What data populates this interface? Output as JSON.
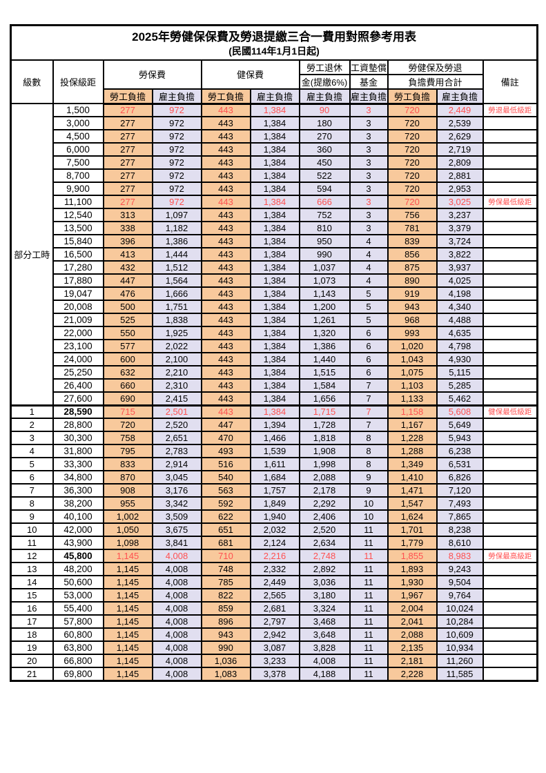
{
  "title": "2025年勞健保保費及勞退提繳三合一費用對照參考用表",
  "subtitle": "(民國114年1月1日起)",
  "colors": {
    "employee_bg": "#F8C99C",
    "employer_bg": "#E1DFF0",
    "highlight_red": "#FF5050",
    "border": "#000000"
  },
  "header": {
    "level": "級數",
    "salary": "投保級距",
    "labor_insurance": "勞保費",
    "health_insurance": "健保費",
    "pension_line1": "勞工退休",
    "pension_line2": "金(提繳6%)",
    "wage_fund_line1": "工資墊償",
    "wage_fund_line2": "基金",
    "total_line1": "勞健保及勞退",
    "total_line2": "負擔費用合計",
    "note": "備註",
    "employee": "勞工負擔",
    "employer": "雇主負擔"
  },
  "part_time_label": "部分工時",
  "part_time_rowspan": 23,
  "rows": [
    {
      "level": "",
      "salary": "1,500",
      "values": [
        "277",
        "972",
        "443",
        "1,384",
        "90",
        "3",
        "720",
        "2,449"
      ],
      "note": "勞退最低級距",
      "red": true,
      "bold": false,
      "divider": false
    },
    {
      "level": "",
      "salary": "3,000",
      "values": [
        "277",
        "972",
        "443",
        "1,384",
        "180",
        "3",
        "720",
        "2,539"
      ],
      "note": "",
      "red": false,
      "bold": false,
      "divider": false
    },
    {
      "level": "",
      "salary": "4,500",
      "values": [
        "277",
        "972",
        "443",
        "1,384",
        "270",
        "3",
        "720",
        "2,629"
      ],
      "note": "",
      "red": false,
      "bold": false,
      "divider": false
    },
    {
      "level": "",
      "salary": "6,000",
      "values": [
        "277",
        "972",
        "443",
        "1,384",
        "360",
        "3",
        "720",
        "2,719"
      ],
      "note": "",
      "red": false,
      "bold": false,
      "divider": false
    },
    {
      "level": "",
      "salary": "7,500",
      "values": [
        "277",
        "972",
        "443",
        "1,384",
        "450",
        "3",
        "720",
        "2,809"
      ],
      "note": "",
      "red": false,
      "bold": false,
      "divider": false
    },
    {
      "level": "",
      "salary": "8,700",
      "values": [
        "277",
        "972",
        "443",
        "1,384",
        "522",
        "3",
        "720",
        "2,881"
      ],
      "note": "",
      "red": false,
      "bold": false,
      "divider": false
    },
    {
      "level": "",
      "salary": "9,900",
      "values": [
        "277",
        "972",
        "443",
        "1,384",
        "594",
        "3",
        "720",
        "2,953"
      ],
      "note": "",
      "red": false,
      "bold": false,
      "divider": false
    },
    {
      "level": "",
      "salary": "11,100",
      "values": [
        "277",
        "972",
        "443",
        "1,384",
        "666",
        "3",
        "720",
        "3,025"
      ],
      "note": "勞保最低級距",
      "red": true,
      "bold": false,
      "divider": false
    },
    {
      "level": "",
      "salary": "12,540",
      "values": [
        "313",
        "1,097",
        "443",
        "1,384",
        "752",
        "3",
        "756",
        "3,237"
      ],
      "note": "",
      "red": false,
      "bold": false,
      "divider": false
    },
    {
      "level": "",
      "salary": "13,500",
      "values": [
        "338",
        "1,182",
        "443",
        "1,384",
        "810",
        "3",
        "781",
        "3,379"
      ],
      "note": "",
      "red": false,
      "bold": false,
      "divider": false
    },
    {
      "level": "",
      "salary": "15,840",
      "values": [
        "396",
        "1,386",
        "443",
        "1,384",
        "950",
        "4",
        "839",
        "3,724"
      ],
      "note": "",
      "red": false,
      "bold": false,
      "divider": false
    },
    {
      "level": "",
      "salary": "16,500",
      "values": [
        "413",
        "1,444",
        "443",
        "1,384",
        "990",
        "4",
        "856",
        "3,822"
      ],
      "note": "",
      "red": false,
      "bold": false,
      "divider": false
    },
    {
      "level": "",
      "salary": "17,280",
      "values": [
        "432",
        "1,512",
        "443",
        "1,384",
        "1,037",
        "4",
        "875",
        "3,937"
      ],
      "note": "",
      "red": false,
      "bold": false,
      "divider": false
    },
    {
      "level": "",
      "salary": "17,880",
      "values": [
        "447",
        "1,564",
        "443",
        "1,384",
        "1,073",
        "4",
        "890",
        "4,025"
      ],
      "note": "",
      "red": false,
      "bold": false,
      "divider": false
    },
    {
      "level": "",
      "salary": "19,047",
      "values": [
        "476",
        "1,666",
        "443",
        "1,384",
        "1,143",
        "5",
        "919",
        "4,198"
      ],
      "note": "",
      "red": false,
      "bold": false,
      "divider": false
    },
    {
      "level": "",
      "salary": "20,008",
      "values": [
        "500",
        "1,751",
        "443",
        "1,384",
        "1,200",
        "5",
        "943",
        "4,340"
      ],
      "note": "",
      "red": false,
      "bold": false,
      "divider": false
    },
    {
      "level": "",
      "salary": "21,009",
      "values": [
        "525",
        "1,838",
        "443",
        "1,384",
        "1,261",
        "5",
        "968",
        "4,488"
      ],
      "note": "",
      "red": false,
      "bold": false,
      "divider": false
    },
    {
      "level": "",
      "salary": "22,000",
      "values": [
        "550",
        "1,925",
        "443",
        "1,384",
        "1,320",
        "6",
        "993",
        "4,635"
      ],
      "note": "",
      "red": false,
      "bold": false,
      "divider": false
    },
    {
      "level": "",
      "salary": "23,100",
      "values": [
        "577",
        "2,022",
        "443",
        "1,384",
        "1,386",
        "6",
        "1,020",
        "4,798"
      ],
      "note": "",
      "red": false,
      "bold": false,
      "divider": false
    },
    {
      "level": "",
      "salary": "24,000",
      "values": [
        "600",
        "2,100",
        "443",
        "1,384",
        "1,440",
        "6",
        "1,043",
        "4,930"
      ],
      "note": "",
      "red": false,
      "bold": false,
      "divider": false
    },
    {
      "level": "",
      "salary": "25,250",
      "values": [
        "632",
        "2,210",
        "443",
        "1,384",
        "1,515",
        "6",
        "1,075",
        "5,115"
      ],
      "note": "",
      "red": false,
      "bold": false,
      "divider": false
    },
    {
      "level": "",
      "salary": "26,400",
      "values": [
        "660",
        "2,310",
        "443",
        "1,384",
        "1,584",
        "7",
        "1,103",
        "5,285"
      ],
      "note": "",
      "red": false,
      "bold": false,
      "divider": false
    },
    {
      "level": "",
      "salary": "27,600",
      "values": [
        "690",
        "2,415",
        "443",
        "1,384",
        "1,656",
        "7",
        "1,133",
        "5,462"
      ],
      "note": "",
      "red": false,
      "bold": false,
      "divider": false
    },
    {
      "level": "1",
      "salary": "28,590",
      "values": [
        "715",
        "2,501",
        "443",
        "1,384",
        "1,715",
        "7",
        "1,158",
        "5,608"
      ],
      "note": "健保最低級距",
      "red": true,
      "bold": true,
      "divider": true
    },
    {
      "level": "2",
      "salary": "28,800",
      "values": [
        "720",
        "2,520",
        "447",
        "1,394",
        "1,728",
        "7",
        "1,167",
        "5,649"
      ],
      "note": "",
      "red": false,
      "bold": false,
      "divider": false
    },
    {
      "level": "3",
      "salary": "30,300",
      "values": [
        "758",
        "2,651",
        "470",
        "1,466",
        "1,818",
        "8",
        "1,228",
        "5,943"
      ],
      "note": "",
      "red": false,
      "bold": false,
      "divider": false
    },
    {
      "level": "4",
      "salary": "31,800",
      "values": [
        "795",
        "2,783",
        "493",
        "1,539",
        "1,908",
        "8",
        "1,288",
        "6,238"
      ],
      "note": "",
      "red": false,
      "bold": false,
      "divider": false
    },
    {
      "level": "5",
      "salary": "33,300",
      "values": [
        "833",
        "2,914",
        "516",
        "1,611",
        "1,998",
        "8",
        "1,349",
        "6,531"
      ],
      "note": "",
      "red": false,
      "bold": false,
      "divider": false
    },
    {
      "level": "6",
      "salary": "34,800",
      "values": [
        "870",
        "3,045",
        "540",
        "1,684",
        "2,088",
        "9",
        "1,410",
        "6,826"
      ],
      "note": "",
      "red": false,
      "bold": false,
      "divider": false
    },
    {
      "level": "7",
      "salary": "36,300",
      "values": [
        "908",
        "3,176",
        "563",
        "1,757",
        "2,178",
        "9",
        "1,471",
        "7,120"
      ],
      "note": "",
      "red": false,
      "bold": false,
      "divider": false
    },
    {
      "level": "8",
      "salary": "38,200",
      "values": [
        "955",
        "3,342",
        "592",
        "1,849",
        "2,292",
        "10",
        "1,547",
        "7,493"
      ],
      "note": "",
      "red": false,
      "bold": false,
      "divider": false
    },
    {
      "level": "9",
      "salary": "40,100",
      "values": [
        "1,002",
        "3,509",
        "622",
        "1,940",
        "2,406",
        "10",
        "1,624",
        "7,865"
      ],
      "note": "",
      "red": false,
      "bold": false,
      "divider": false
    },
    {
      "level": "10",
      "salary": "42,000",
      "values": [
        "1,050",
        "3,675",
        "651",
        "2,032",
        "2,520",
        "11",
        "1,701",
        "8,238"
      ],
      "note": "",
      "red": false,
      "bold": false,
      "divider": false
    },
    {
      "level": "11",
      "salary": "43,900",
      "values": [
        "1,098",
        "3,841",
        "681",
        "2,124",
        "2,634",
        "11",
        "1,779",
        "8,610"
      ],
      "note": "",
      "red": false,
      "bold": false,
      "divider": false
    },
    {
      "level": "12",
      "salary": "45,800",
      "values": [
        "1,145",
        "4,008",
        "710",
        "2,216",
        "2,748",
        "11",
        "1,855",
        "8,983"
      ],
      "note": "勞保最高級距",
      "red": true,
      "bold": true,
      "divider": false
    },
    {
      "level": "13",
      "salary": "48,200",
      "values": [
        "1,145",
        "4,008",
        "748",
        "2,332",
        "2,892",
        "11",
        "1,893",
        "9,243"
      ],
      "note": "",
      "red": false,
      "bold": false,
      "divider": false
    },
    {
      "level": "14",
      "salary": "50,600",
      "values": [
        "1,145",
        "4,008",
        "785",
        "2,449",
        "3,036",
        "11",
        "1,930",
        "9,504"
      ],
      "note": "",
      "red": false,
      "bold": false,
      "divider": false
    },
    {
      "level": "15",
      "salary": "53,000",
      "values": [
        "1,145",
        "4,008",
        "822",
        "2,565",
        "3,180",
        "11",
        "1,967",
        "9,764"
      ],
      "note": "",
      "red": false,
      "bold": false,
      "divider": false
    },
    {
      "level": "16",
      "salary": "55,400",
      "values": [
        "1,145",
        "4,008",
        "859",
        "2,681",
        "3,324",
        "11",
        "2,004",
        "10,024"
      ],
      "note": "",
      "red": false,
      "bold": false,
      "divider": false
    },
    {
      "level": "17",
      "salary": "57,800",
      "values": [
        "1,145",
        "4,008",
        "896",
        "2,797",
        "3,468",
        "11",
        "2,041",
        "10,284"
      ],
      "note": "",
      "red": false,
      "bold": false,
      "divider": false
    },
    {
      "level": "18",
      "salary": "60,800",
      "values": [
        "1,145",
        "4,008",
        "943",
        "2,942",
        "3,648",
        "11",
        "2,088",
        "10,609"
      ],
      "note": "",
      "red": false,
      "bold": false,
      "divider": false
    },
    {
      "level": "19",
      "salary": "63,800",
      "values": [
        "1,145",
        "4,008",
        "990",
        "3,087",
        "3,828",
        "11",
        "2,135",
        "10,934"
      ],
      "note": "",
      "red": false,
      "bold": false,
      "divider": false
    },
    {
      "level": "20",
      "salary": "66,800",
      "values": [
        "1,145",
        "4,008",
        "1,036",
        "3,233",
        "4,008",
        "11",
        "2,181",
        "11,260"
      ],
      "note": "",
      "red": false,
      "bold": false,
      "divider": false
    },
    {
      "level": "21",
      "salary": "69,800",
      "values": [
        "1,145",
        "4,008",
        "1,083",
        "3,378",
        "4,188",
        "11",
        "2,228",
        "11,585"
      ],
      "note": "",
      "red": false,
      "bold": false,
      "divider": false
    }
  ]
}
